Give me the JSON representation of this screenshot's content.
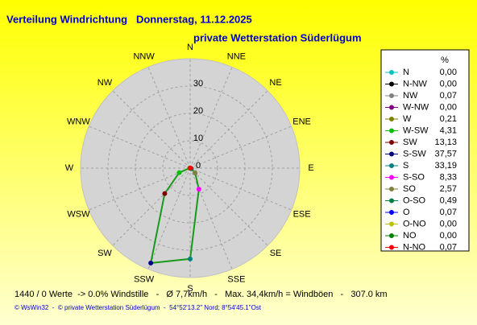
{
  "chart_data": {
    "type": "radar",
    "title": "Verteilung Windrichtung   Donnerstag, 11.12.2025",
    "subtitle": "private Wetterstation Süderlügum",
    "categories": [
      "N",
      "NNE",
      "NE",
      "ENE",
      "E",
      "ESE",
      "SE",
      "SSE",
      "S",
      "SSW",
      "SW",
      "WSW",
      "W",
      "WNW",
      "NW",
      "NNW"
    ],
    "rlim": [
      0,
      40
    ],
    "rticks": [
      0,
      10,
      20,
      30
    ],
    "legend_header": "%",
    "line_color": "#1a9a1a",
    "series": [
      {
        "name": "N",
        "color": "#00c0c0",
        "value": 0.0,
        "value_label": "0,00"
      },
      {
        "name": "N-NW",
        "color": "#000000",
        "value": 0.0,
        "value_label": "0,00"
      },
      {
        "name": "NW",
        "color": "#808080",
        "value": 0.07,
        "value_label": "0,07"
      },
      {
        "name": "W-NW",
        "color": "#800080",
        "value": 0.0,
        "value_label": "0,00"
      },
      {
        "name": "W",
        "color": "#808000",
        "value": 0.21,
        "value_label": "0,21"
      },
      {
        "name": "W-SW",
        "color": "#00c000",
        "value": 4.31,
        "value_label": "4,31"
      },
      {
        "name": "SW",
        "color": "#800000",
        "value": 13.13,
        "value_label": "13,13"
      },
      {
        "name": "S-SW",
        "color": "#000080",
        "value": 37.57,
        "value_label": "37,57"
      },
      {
        "name": "S",
        "color": "#008080",
        "value": 33.19,
        "value_label": "33,19"
      },
      {
        "name": "S-SO",
        "color": "#ff00ff",
        "value": 8.33,
        "value_label": "8,33"
      },
      {
        "name": "SO",
        "color": "#808040",
        "value": 2.57,
        "value_label": "2,57"
      },
      {
        "name": "O-SO",
        "color": "#008040",
        "value": 0.49,
        "value_label": "0,49"
      },
      {
        "name": "O",
        "color": "#0000ff",
        "value": 0.07,
        "value_label": "0,07"
      },
      {
        "name": "O-NO",
        "color": "#c0c000",
        "value": 0.0,
        "value_label": "0,00"
      },
      {
        "name": "NO",
        "color": "#008000",
        "value": 0.0,
        "value_label": "0,00"
      },
      {
        "name": "N-NO",
        "color": "#ff0000",
        "value": 0.07,
        "value_label": "0,07"
      }
    ],
    "footer": "1440 / 0 Werte  -> 0.0% Windstille   -   Ø 7,7km/h   -   Max. 34,4km/h = Windböen   -   307.0 km",
    "credits": "© WsWin32  -  © private Wetterstation Süderlügum  -  54°52'13.2\" Nord; 8°54'45.1\"Ost"
  }
}
